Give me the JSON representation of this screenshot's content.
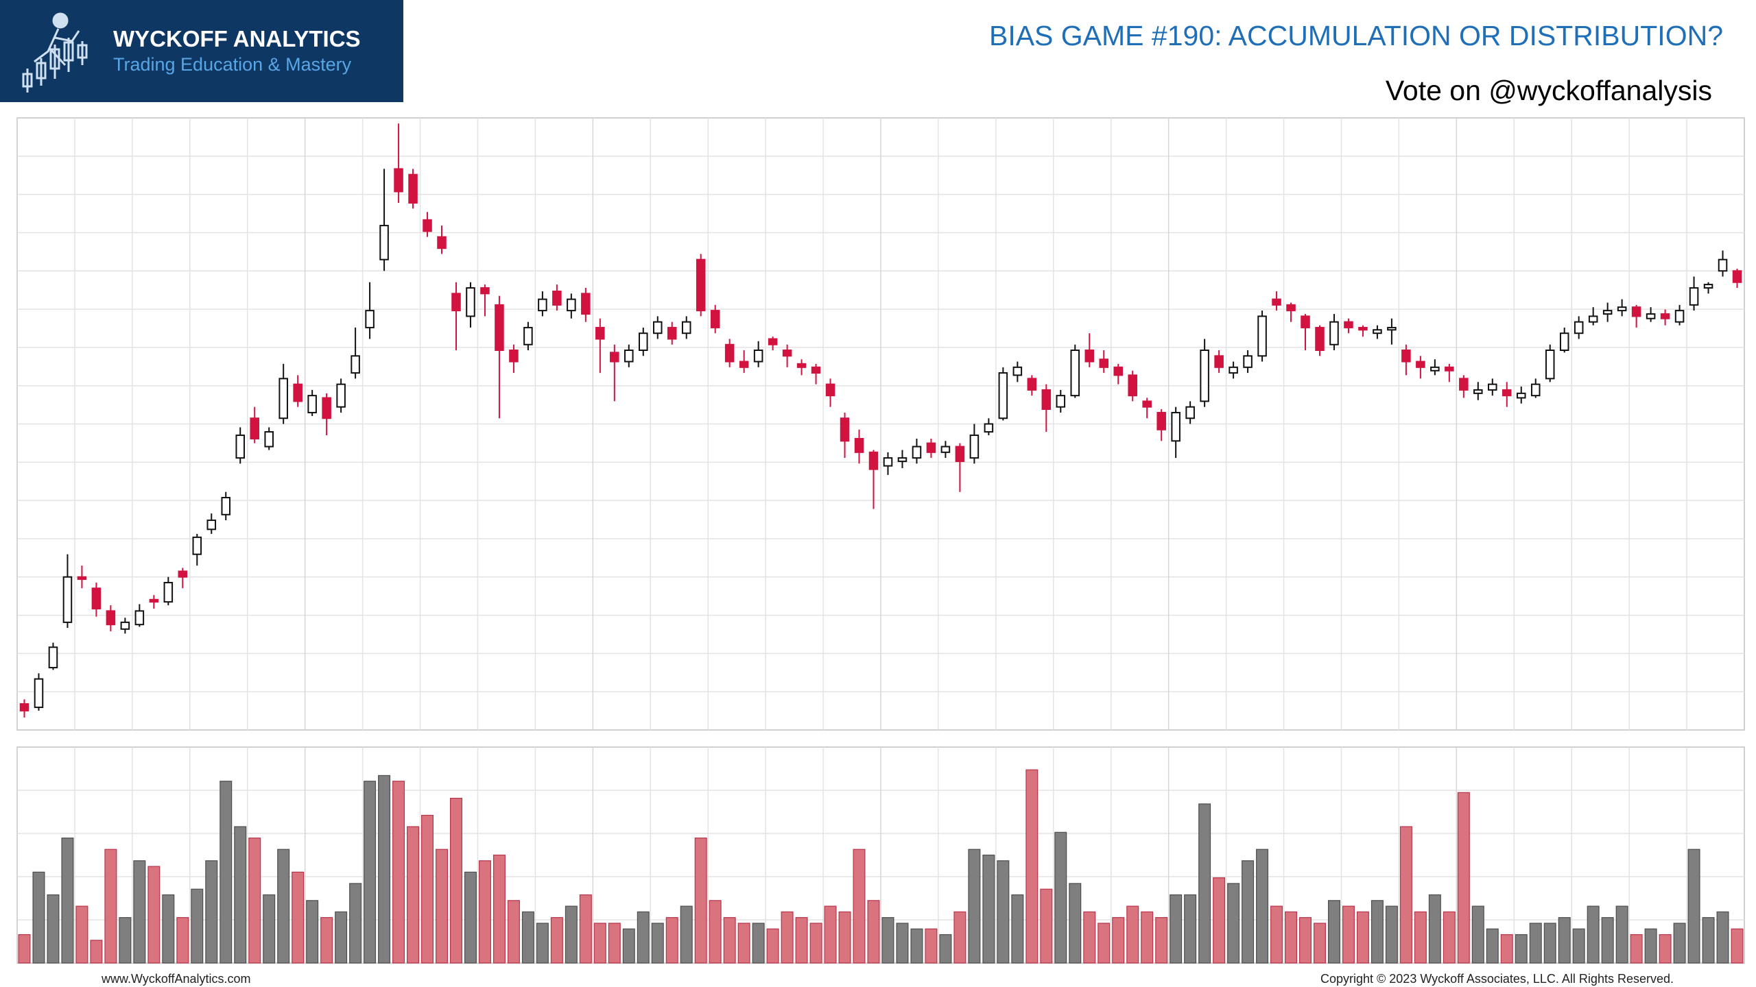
{
  "header": {
    "brand": "WYCKOFF ANALYTICS",
    "tagline": "Trading Education & Mastery"
  },
  "footer": {
    "website": "www.WyckoffAnalytics.com",
    "copyright": "Copyright © 2023 Wyckoff Associates, LLC. All Rights Reserved."
  },
  "chart_data": {
    "type": "candlestick",
    "title": "BIAS GAME #190: ACCUMULATION OR DISTRIBUTION?",
    "subtitle": "Vote on @wyckoffanalysis",
    "grid": true,
    "up_color": "#ffffff",
    "down_color": "#d2123f",
    "volume_up_color": "#7f7f7f",
    "volume_down_color": "#d9737d",
    "ylim": [
      5,
      545
    ],
    "volume_lim": [
      0,
      190
    ],
    "open": [
      28,
      25,
      60,
      100,
      140,
      130,
      110,
      94,
      98,
      120,
      118,
      145,
      160,
      182,
      195,
      245,
      280,
      255,
      280,
      310,
      285,
      298,
      290,
      320,
      360,
      420,
      500,
      495,
      455,
      440,
      390,
      370,
      395,
      380,
      340,
      345,
      375,
      392,
      375,
      390,
      360,
      338,
      330,
      340,
      355,
      360,
      355,
      420,
      375,
      345,
      330,
      330,
      350,
      340,
      328,
      325,
      310,
      280,
      262,
      250,
      238,
      242,
      245,
      258,
      250,
      255,
      245,
      268,
      280,
      318,
      315,
      305,
      290,
      300,
      340,
      332,
      325,
      318,
      295,
      285,
      260,
      280,
      295,
      335,
      320,
      325,
      335,
      385,
      380,
      370,
      360,
      345,
      365,
      360,
      355,
      358,
      340,
      330,
      322,
      325,
      315,
      302,
      305,
      305,
      298,
      300,
      315,
      340,
      355,
      365,
      372,
      375,
      378,
      368,
      372,
      365,
      380,
      395,
      410,
      410
    ],
    "high": [
      32,
      55,
      82,
      160,
      150,
      135,
      115,
      104,
      116,
      124,
      140,
      148,
      178,
      196,
      215,
      272,
      290,
      272,
      328,
      318,
      305,
      302,
      315,
      360,
      400,
      500,
      540,
      500,
      462,
      450,
      400,
      400,
      398,
      388,
      345,
      365,
      392,
      398,
      390,
      395,
      368,
      345,
      345,
      360,
      370,
      365,
      370,
      425,
      380,
      350,
      340,
      348,
      352,
      345,
      332,
      328,
      315,
      285,
      270,
      252,
      250,
      252,
      262,
      262,
      260,
      258,
      275,
      280,
      325,
      330,
      318,
      310,
      305,
      345,
      355,
      340,
      328,
      322,
      298,
      288,
      290,
      295,
      350,
      340,
      330,
      340,
      375,
      392,
      382,
      372,
      362,
      372,
      368,
      362,
      362,
      368,
      345,
      335,
      332,
      328,
      318,
      312,
      315,
      312,
      308,
      315,
      345,
      360,
      370,
      378,
      382,
      385,
      380,
      378,
      376,
      380,
      405,
      400,
      428,
      412
    ],
    "low": [
      16,
      22,
      58,
      95,
      130,
      105,
      92,
      90,
      96,
      112,
      115,
      130,
      150,
      178,
      190,
      240,
      258,
      252,
      275,
      290,
      282,
      265,
      285,
      315,
      350,
      410,
      470,
      465,
      440,
      425,
      340,
      360,
      370,
      280,
      320,
      340,
      370,
      375,
      368,
      365,
      320,
      295,
      325,
      335,
      350,
      345,
      350,
      370,
      355,
      325,
      320,
      325,
      340,
      325,
      318,
      310,
      290,
      245,
      240,
      200,
      230,
      236,
      240,
      245,
      245,
      215,
      240,
      265,
      278,
      312,
      300,
      268,
      285,
      298,
      325,
      320,
      310,
      295,
      280,
      260,
      245,
      275,
      290,
      320,
      315,
      320,
      330,
      375,
      365,
      340,
      335,
      340,
      355,
      352,
      350,
      345,
      318,
      315,
      318,
      312,
      298,
      296,
      300,
      290,
      293,
      298,
      312,
      338,
      350,
      362,
      365,
      370,
      360,
      365,
      362,
      362,
      375,
      390,
      405,
      395
    ],
    "close": [
      22,
      50,
      78,
      140,
      138,
      112,
      98,
      100,
      110,
      118,
      135,
      140,
      175,
      190,
      210,
      265,
      262,
      268,
      315,
      295,
      300,
      280,
      310,
      335,
      375,
      450,
      480,
      470,
      445,
      430,
      375,
      395,
      390,
      340,
      330,
      360,
      385,
      380,
      385,
      372,
      350,
      330,
      340,
      355,
      365,
      350,
      365,
      375,
      360,
      330,
      325,
      340,
      345,
      335,
      325,
      320,
      300,
      260,
      250,
      235,
      245,
      245,
      255,
      250,
      255,
      242,
      265,
      275,
      320,
      325,
      305,
      288,
      300,
      340,
      330,
      325,
      318,
      300,
      290,
      270,
      285,
      290,
      340,
      325,
      325,
      335,
      370,
      380,
      375,
      360,
      340,
      365,
      360,
      358,
      358,
      360,
      330,
      325,
      325,
      322,
      305,
      305,
      310,
      300,
      302,
      310,
      340,
      355,
      365,
      370,
      375,
      378,
      370,
      372,
      368,
      375,
      395,
      398,
      420,
      400
    ],
    "volume": [
      25,
      80,
      60,
      110,
      50,
      20,
      100,
      40,
      90,
      85,
      60,
      40,
      65,
      90,
      160,
      120,
      110,
      60,
      100,
      80,
      55,
      40,
      45,
      70,
      160,
      165,
      160,
      120,
      130,
      100,
      145,
      80,
      90,
      95,
      55,
      45,
      35,
      40,
      50,
      60,
      35,
      35,
      30,
      45,
      35,
      40,
      50,
      110,
      55,
      40,
      35,
      35,
      30,
      45,
      40,
      35,
      50,
      45,
      100,
      55,
      40,
      35,
      30,
      30,
      25,
      45,
      100,
      95,
      90,
      60,
      170,
      65,
      115,
      70,
      45,
      35,
      40,
      50,
      45,
      40,
      60,
      60,
      140,
      75,
      70,
      90,
      100,
      50,
      45,
      40,
      35,
      55,
      50,
      45,
      55,
      50,
      120,
      45,
      60,
      45,
      150,
      50,
      30,
      25,
      25,
      35,
      35,
      40,
      30,
      50,
      40,
      50,
      25,
      30,
      25,
      35,
      100,
      40,
      45,
      30
    ]
  }
}
